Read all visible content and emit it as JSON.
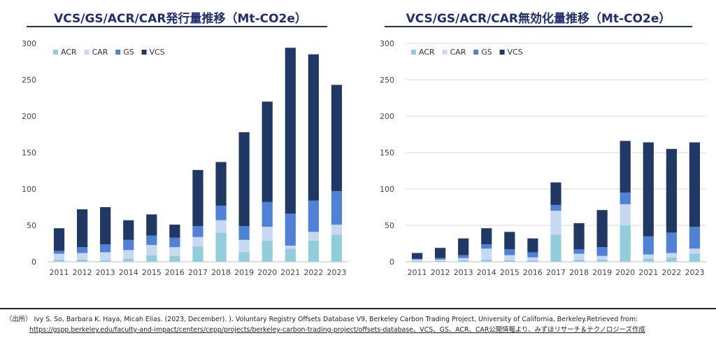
{
  "colors": {
    "ACR": "#92cddc",
    "CAR": "#c6d9f1",
    "GS": "#4f81d6",
    "VCS": "#1f3864",
    "title": "#1f2f6e"
  },
  "chart_data": [
    {
      "type": "bar",
      "stacked": true,
      "title": "VCS/GS/ACR/CAR発行量推移（Mt-CO2e）",
      "categories": [
        "2011",
        "2012",
        "2013",
        "2014",
        "2015",
        "2016",
        "2017",
        "2018",
        "2019",
        "2020",
        "2021",
        "2022",
        "2023"
      ],
      "ylim": [
        0,
        300
      ],
      "yticks": [
        0,
        50,
        100,
        150,
        200,
        250,
        300
      ],
      "legend": [
        "ACR",
        "CAR",
        "GS",
        "VCS"
      ],
      "legend_position": "top-left",
      "grid": false,
      "series": [
        {
          "name": "ACR",
          "values": [
            3,
            3,
            2,
            4,
            9,
            8,
            21,
            40,
            13,
            29,
            18,
            29,
            37
          ]
        },
        {
          "name": "CAR",
          "values": [
            8,
            9,
            11,
            12,
            14,
            12,
            13,
            17,
            17,
            19,
            4,
            12,
            14
          ]
        },
        {
          "name": "GS",
          "values": [
            4,
            8,
            11,
            14,
            13,
            13,
            15,
            20,
            19,
            34,
            44,
            43,
            46
          ]
        },
        {
          "name": "VCS",
          "values": [
            31,
            52,
            51,
            27,
            29,
            18,
            77,
            60,
            129,
            138,
            228,
            201,
            146
          ]
        }
      ]
    },
    {
      "type": "bar",
      "stacked": true,
      "title": "VCS/GS/ACR/CAR無効化量推移（Mt-CO2e）",
      "categories": [
        "2011",
        "2012",
        "2013",
        "2014",
        "2015",
        "2016",
        "2017",
        "2018",
        "2019",
        "2020",
        "2021",
        "2022",
        "2023"
      ],
      "ylim": [
        0,
        300
      ],
      "yticks": [
        0,
        50,
        100,
        150,
        200,
        250,
        300
      ],
      "legend": [
        "ACR",
        "CAR",
        "GS",
        "VCS"
      ],
      "legend_position": "top-left",
      "grid": true,
      "series": [
        {
          "name": "ACR",
          "values": [
            1,
            1,
            2,
            3,
            2,
            2,
            37,
            3,
            3,
            50,
            4,
            6,
            11
          ]
        },
        {
          "name": "CAR",
          "values": [
            2,
            2,
            3,
            15,
            7,
            4,
            33,
            8,
            5,
            29,
            6,
            6,
            7
          ]
        },
        {
          "name": "GS",
          "values": [
            1,
            2,
            4,
            6,
            8,
            7,
            8,
            6,
            12,
            16,
            25,
            28,
            30
          ]
        },
        {
          "name": "VCS",
          "values": [
            8,
            14,
            23,
            22,
            24,
            19,
            31,
            36,
            51,
            71,
            129,
            115,
            116
          ]
        }
      ]
    }
  ],
  "footer": {
    "source_line1": "（出所） Ivy S. So, Barbara K. Haya, Micah Elias. (2023, December). ). Voluntary Registry Offsets Database V9, Berkeley Carbon Trading Project, University of California, Berkeley.Retrieved from:",
    "source_line2": "https://gspp.berkeley.edu/faculty-and-impact/centers/cepp/projects/berkeley-carbon-trading-project/offsets-database、VCS、GS、ACR、CAR公開情報より、みずほリサーチ＆テクノロジーズ作成"
  }
}
